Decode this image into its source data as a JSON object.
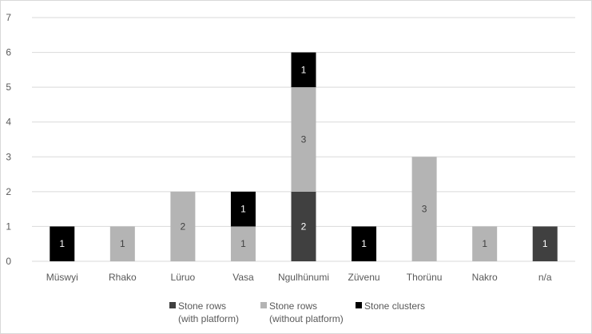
{
  "chart_data": {
    "type": "bar",
    "stacked": true,
    "categories": [
      "Müswyi",
      "Rhako",
      "Lüruo",
      "Vasa",
      "Ngulhünumi",
      "Züvenu",
      "Thorünu",
      "Nakro",
      "n/a"
    ],
    "series": [
      {
        "name": "Stone rows\n(with platform)",
        "legend_lines": [
          "Stone rows",
          "(with platform)"
        ],
        "color": "#404040",
        "label_color": "#ffffff",
        "values": [
          0,
          0,
          0,
          0,
          2,
          0,
          0,
          0,
          1
        ]
      },
      {
        "name": "Stone rows\n(without platform)",
        "legend_lines": [
          "Stone rows",
          "(without platform)"
        ],
        "color": "#b4b4b4",
        "label_color": "#404040",
        "values": [
          0,
          1,
          2,
          1,
          3,
          0,
          3,
          1,
          0
        ]
      },
      {
        "name": "Stone clusters",
        "legend_lines": [
          "Stone clusters"
        ],
        "color": "#000000",
        "label_color": "#ffffff",
        "values": [
          1,
          0,
          0,
          1,
          1,
          1,
          0,
          0,
          0
        ]
      }
    ],
    "ylim": [
      0,
      7
    ],
    "yticks": [
      0,
      1,
      2,
      3,
      4,
      5,
      6,
      7
    ],
    "grid": true,
    "legend": "bottom",
    "title": "",
    "xlabel": "",
    "ylabel": ""
  }
}
